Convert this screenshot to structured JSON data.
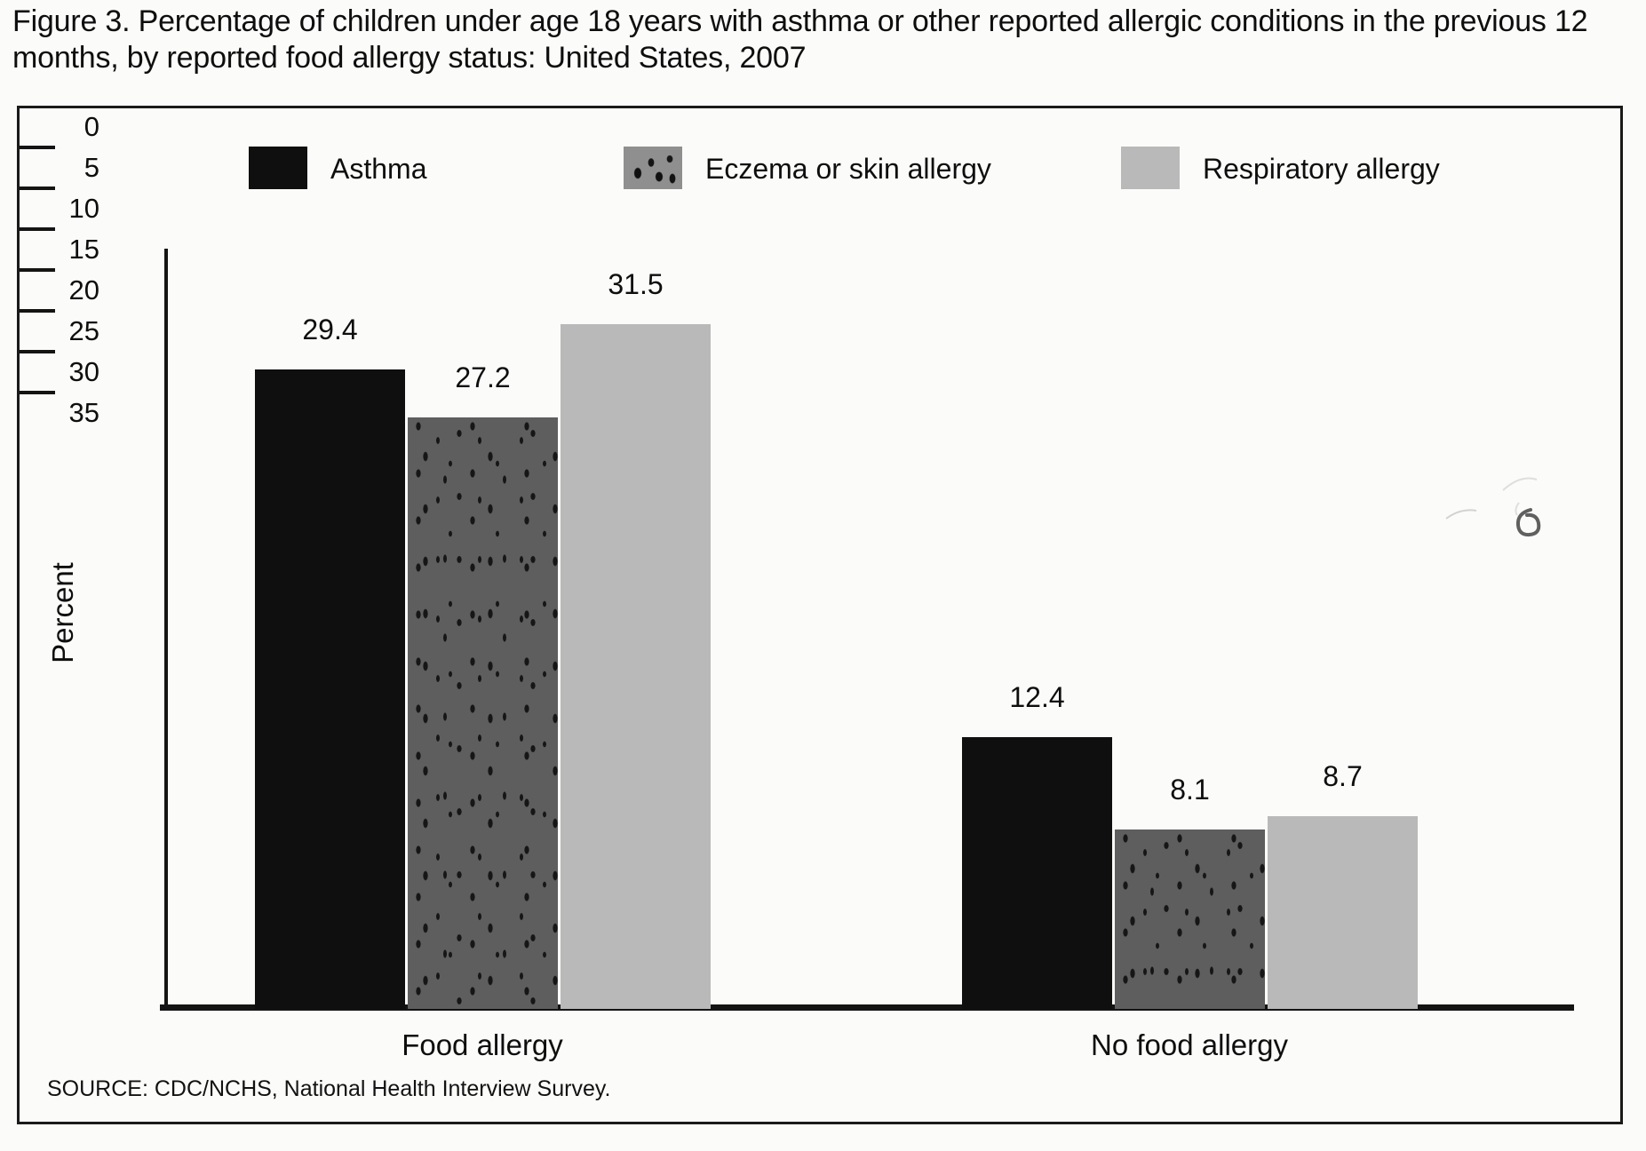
{
  "header": {
    "title_lines": [
      "Figure 3. Percentage of children under age 18 years with asthma or other reported allergic conditions in the previous 12",
      "months, by reported food allergy status: United States, 2007"
    ]
  },
  "chart_data": {
    "type": "bar",
    "title": "Figure 3. Percentage of children under age 18 years with asthma or other reported allergic conditions in the previous 12 months, by reported food allergy status: United States, 2007",
    "categories": [
      "Food allergy",
      "No food allergy"
    ],
    "series": [
      {
        "name": "Asthma",
        "pattern": "solid-black",
        "values": [
          29.4,
          12.4
        ]
      },
      {
        "name": "Eczema or skin allergy",
        "pattern": "speckled-dark",
        "values": [
          27.2,
          8.1
        ]
      },
      {
        "name": "Respiratory allergy",
        "pattern": "light-gray",
        "values": [
          31.5,
          8.7
        ]
      }
    ],
    "ylabel": "Percent",
    "xlabel": "",
    "ylim": [
      0,
      35
    ],
    "yticks": [
      0,
      5,
      10,
      15,
      20,
      25,
      30,
      35
    ],
    "value_labels": true,
    "grid": false,
    "legend_position": "top",
    "colors": {
      "asthma": "#0f0f0f",
      "eczema_base": "#5e5e5e",
      "eczema_speckle": "#161616",
      "respiratory": "#b9b9b9",
      "axis": "#141414",
      "paper": "#fbfbf9"
    },
    "source": "SOURCE: CDC/NCHS, National Health Interview Survey."
  }
}
